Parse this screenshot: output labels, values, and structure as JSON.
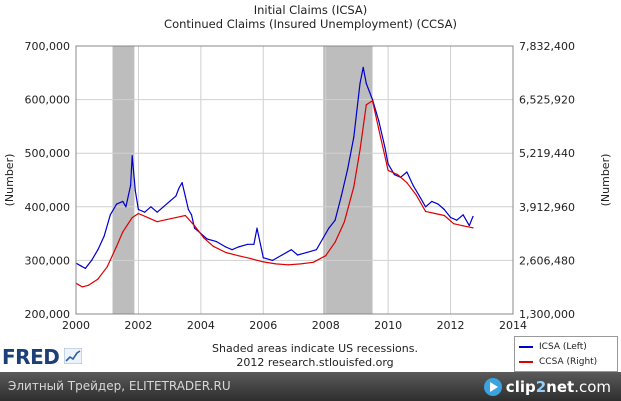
{
  "chart_data": {
    "type": "line",
    "title": "Initial Claims (ICSA)",
    "subtitle": "Continued Claims (Insured Unemployment) (CCSA)",
    "ylabel_left": "(Number)",
    "ylabel_right": "(Number)",
    "xlim": [
      2000,
      2014
    ],
    "x_ticks": [
      "2000",
      "2002",
      "2004",
      "2006",
      "2008",
      "2010",
      "2012",
      "2014"
    ],
    "ylim_left": [
      200000,
      700000
    ],
    "y_ticks_left": [
      "200,000",
      "300,000",
      "400,000",
      "500,000",
      "600,000",
      "700,000"
    ],
    "ylim_right": [
      1300000,
      7832400
    ],
    "y_ticks_right": [
      "1,300,000",
      "2,606,480",
      "3,912,960",
      "5,219,440",
      "6,525,920",
      "7,832,400"
    ],
    "recessions": [
      [
        2001.17,
        2001.87
      ],
      [
        2007.92,
        2009.5
      ]
    ],
    "series": [
      {
        "name": "ICSA (Left)",
        "axis": "left",
        "color": "#0000cc",
        "x": [
          2000.0,
          2000.15,
          2000.3,
          2000.5,
          2000.7,
          2000.9,
          2001.1,
          2001.3,
          2001.5,
          2001.6,
          2001.75,
          2001.8,
          2001.9,
          2002.0,
          2002.2,
          2002.4,
          2002.6,
          2002.8,
          2003.0,
          2003.2,
          2003.3,
          2003.4,
          2003.5,
          2003.6,
          2003.7,
          2003.8,
          2004.0,
          2004.2,
          2004.5,
          2004.8,
          2005.0,
          2005.2,
          2005.5,
          2005.7,
          2005.8,
          2006.0,
          2006.3,
          2006.6,
          2006.9,
          2007.1,
          2007.4,
          2007.7,
          2007.9,
          2008.1,
          2008.3,
          2008.5,
          2008.7,
          2008.9,
          2009.0,
          2009.1,
          2009.2,
          2009.3,
          2009.5,
          2009.7,
          2009.9,
          2010.0,
          2010.2,
          2010.4,
          2010.6,
          2010.8,
          2011.0,
          2011.2,
          2011.4,
          2011.6,
          2011.8,
          2012.0,
          2012.2,
          2012.4,
          2012.6,
          2012.72
        ],
        "values": [
          295000,
          290000,
          285000,
          300000,
          320000,
          345000,
          385000,
          405000,
          410000,
          400000,
          440000,
          495000,
          430000,
          395000,
          390000,
          400000,
          390000,
          400000,
          410000,
          420000,
          435000,
          445000,
          420000,
          395000,
          385000,
          360000,
          350000,
          340000,
          335000,
          325000,
          320000,
          325000,
          330000,
          330000,
          360000,
          305000,
          300000,
          310000,
          320000,
          310000,
          315000,
          320000,
          340000,
          360000,
          375000,
          420000,
          470000,
          530000,
          580000,
          630000,
          660000,
          630000,
          600000,
          560000,
          510000,
          480000,
          460000,
          455000,
          465000,
          440000,
          420000,
          400000,
          410000,
          405000,
          395000,
          380000,
          375000,
          385000,
          365000,
          382000
        ]
      },
      {
        "name": "CCSA (Right)",
        "axis": "right",
        "color": "#dd0000",
        "x": [
          2000.0,
          2000.2,
          2000.4,
          2000.7,
          2001.0,
          2001.3,
          2001.5,
          2001.8,
          2002.0,
          2002.3,
          2002.6,
          2002.9,
          2003.2,
          2003.5,
          2003.8,
          2004.1,
          2004.4,
          2004.8,
          2005.2,
          2005.6,
          2006.0,
          2006.4,
          2006.8,
          2007.2,
          2007.6,
          2008.0,
          2008.3,
          2008.6,
          2008.9,
          2009.1,
          2009.3,
          2009.5,
          2009.7,
          2010.0,
          2010.3,
          2010.6,
          2010.9,
          2011.2,
          2011.5,
          2011.8,
          2012.1,
          2012.4,
          2012.72
        ],
        "values": [
          2050000,
          1960000,
          2000000,
          2150000,
          2450000,
          2950000,
          3300000,
          3650000,
          3750000,
          3650000,
          3550000,
          3600000,
          3650000,
          3700000,
          3450000,
          3150000,
          2950000,
          2800000,
          2720000,
          2650000,
          2570000,
          2520000,
          2500000,
          2520000,
          2560000,
          2720000,
          3050000,
          3550000,
          4400000,
          5300000,
          6400000,
          6500000,
          5800000,
          4800000,
          4700000,
          4500000,
          4200000,
          3800000,
          3750000,
          3700000,
          3500000,
          3450000,
          3400000
        ]
      }
    ]
  },
  "header": {
    "title": "Initial Claims (ICSA)",
    "subtitle": "Continued Claims (Insured Unemployment) (CCSA)"
  },
  "notes": {
    "line1": "Shaded areas indicate US recessions.",
    "line2": "2012 research.stlouisfed.org"
  },
  "legend": [
    {
      "label": "ICSA (Left)",
      "color": "#0000cc"
    },
    {
      "label": "CCSA (Right)",
      "color": "#dd0000"
    }
  ],
  "logo": {
    "text": "FRED"
  },
  "footer": {
    "site": "Элитный Трейдер, ELITETRADER.RU",
    "brand_a": "clip",
    "brand_b": "2",
    "brand_c": "net",
    "brand_d": ".com"
  }
}
